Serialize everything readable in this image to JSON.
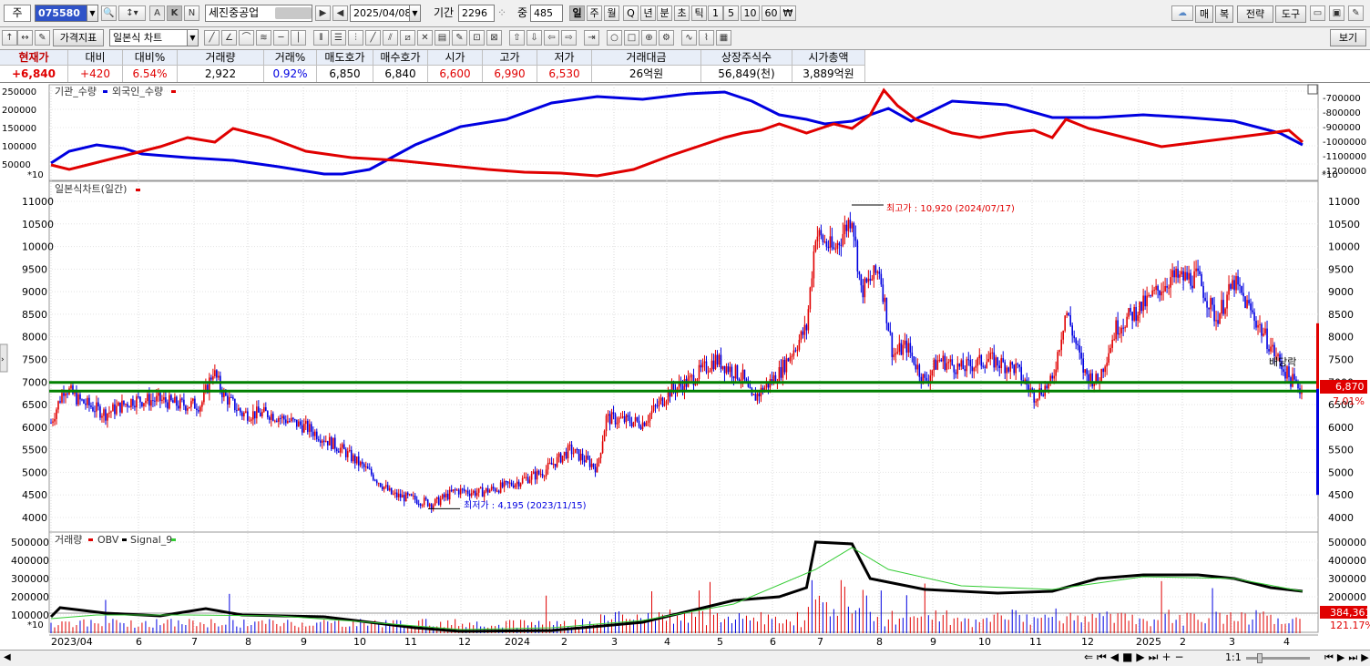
{
  "toolbar1": {
    "type_label": "주",
    "code": "075580",
    "name": "세진중공업",
    "date": "2025/04/08",
    "period_label": "기간",
    "period_value": "2296",
    "count_label": "중",
    "count_value": "485",
    "periods": [
      "일",
      "주",
      "월",
      "Q",
      "년",
      "분",
      "초",
      "틱",
      "1",
      "5",
      "10",
      "60",
      "₩"
    ],
    "abk": [
      "A",
      "K",
      "N"
    ],
    "right_buttons": [
      "매",
      "복",
      "전략",
      "도구"
    ]
  },
  "toolbar2": {
    "indicator_btn": "가격지표",
    "chart_type": "일본식 차트",
    "view_btn": "보기"
  },
  "quote": {
    "headers": [
      "현재가",
      "대비",
      "대비%",
      "거래량",
      "거래%",
      "매도호가",
      "매수호가",
      "시가",
      "고가",
      "저가",
      "거래대금",
      "상장주식수",
      "시가총액"
    ],
    "values": [
      "+6,840",
      "+420",
      "6.54%",
      "2,922",
      "0.92%",
      "6,850",
      "6,840",
      "6,600",
      "6,990",
      "6,530",
      "26억원",
      "56,849(천)",
      "3,889억원"
    ]
  },
  "panel1": {
    "legend": [
      "기관_수량",
      "외국인_수량"
    ],
    "left_ticks": [
      "250000",
      "200000",
      "150000",
      "100000",
      "50000"
    ],
    "right_ticks": [
      "-700000",
      "-800000",
      "-900000",
      "-1000000",
      "-1100000",
      "-1200000"
    ],
    "scale": "*10"
  },
  "panel2": {
    "title": "일본식차트(일간)",
    "ticks": [
      "11000",
      "10500",
      "10000",
      "9500",
      "9000",
      "8500",
      "8000",
      "7500",
      "7000",
      "6500",
      "6000",
      "5500",
      "5000",
      "4500",
      "4000"
    ],
    "high_label": "최고가 : 10,920 (2024/07/17)",
    "low_label": "최저가 : 4,195 (2023/11/15)",
    "dividend_label": "배당락",
    "price_tag": "6,870",
    "pct_tag": "7.01%"
  },
  "panel3": {
    "legend": [
      "거래량",
      "OBV",
      "Signal_9"
    ],
    "ticks": [
      "500000",
      "400000",
      "300000",
      "200000",
      "100000"
    ],
    "scale": "*10",
    "tag1": "384,361",
    "tag2": "121.17%"
  },
  "xaxis": [
    "2023/04",
    "6",
    "7",
    "8",
    "9",
    "10",
    "11",
    "12",
    "2024",
    "2",
    "3",
    "4",
    "5",
    "6",
    "7",
    "8",
    "9",
    "10",
    "11",
    "12",
    "2025",
    "2",
    "3",
    "4"
  ],
  "bottom": {
    "ratio": "1:1"
  },
  "colors": {
    "up": "#e00000",
    "down": "#0000e0",
    "guide": "#008000",
    "signal": "#33cc33"
  },
  "chart_data": {
    "type": "candlestick",
    "title": "일본식차트(일간)",
    "series": [
      {
        "name": "종가",
        "points": [
          [
            "2023/04",
            6300
          ],
          [
            "2023/05",
            6700
          ],
          [
            "2023/06",
            6500
          ],
          [
            "2023/07",
            6900
          ],
          [
            "2023/07",
            7250
          ],
          [
            "2023/08",
            6300
          ],
          [
            "2023/09",
            6200
          ],
          [
            "2023/10",
            5000
          ],
          [
            "2023/11",
            4195
          ],
          [
            "2023/12",
            4550
          ],
          [
            "2024/01",
            4800
          ],
          [
            "2024/02",
            5400
          ],
          [
            "2024/03",
            6100
          ],
          [
            "2024/04",
            6800
          ],
          [
            "2024/05",
            7200
          ],
          [
            "2024/06",
            7100
          ],
          [
            "2024/06",
            8300
          ],
          [
            "2024/07",
            10920
          ],
          [
            "2024/07",
            9500
          ],
          [
            "2024/08",
            7500
          ],
          [
            "2024/09",
            7000
          ],
          [
            "2024/10",
            7300
          ],
          [
            "2024/11",
            6800
          ],
          [
            "2024/12",
            7600
          ],
          [
            "2025/01",
            8700
          ],
          [
            "2025/02",
            9300
          ],
          [
            "2025/03",
            8500
          ],
          [
            "2025/04",
            6840
          ]
        ]
      }
    ],
    "volume_series": [
      "거래량",
      "OBV",
      "Signal_9"
    ],
    "ylim": [
      4000,
      11000
    ]
  }
}
